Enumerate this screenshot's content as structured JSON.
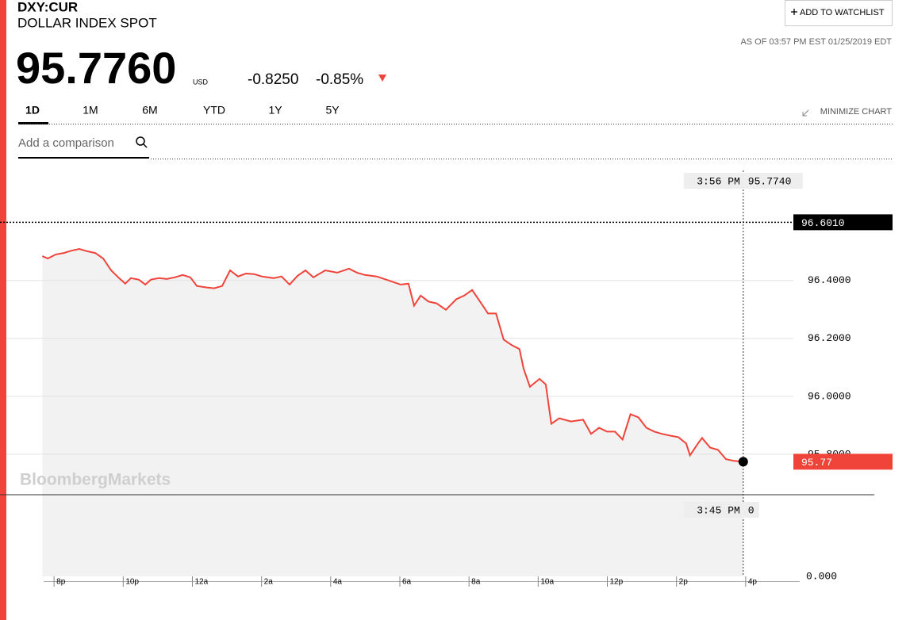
{
  "header": {
    "ticker": "DXY:CUR",
    "name": "DOLLAR INDEX SPOT",
    "price": "95.7760",
    "currency": "USD",
    "change": "-0.8250",
    "change_pct": "-0.85%",
    "as_of": "AS OF 03:57 PM EST 01/25/2019 EDT",
    "watchlist_button": "ADD TO WATCHLIST"
  },
  "tabs": [
    "1D",
    "1M",
    "6M",
    "YTD",
    "1Y",
    "5Y"
  ],
  "minimize": "MINIMIZE CHART",
  "comparison_placeholder": "Add a comparison",
  "chart_data": {
    "type": "line",
    "watermark": "BloombergMarkets",
    "color": "#f0433a",
    "x": [
      19.66,
      19.82,
      20.05,
      20.28,
      20.5,
      20.73,
      20.96,
      21.19,
      21.42,
      21.65,
      21.88,
      22.06,
      22.22,
      22.45,
      22.64,
      22.8,
      23.03,
      23.26,
      23.49,
      23.72,
      23.94,
      24.13,
      24.4,
      24.63,
      24.86,
      25.09,
      25.32,
      25.55,
      25.78,
      26.01,
      26.35,
      26.58,
      26.81,
      27.04,
      27.27,
      27.5,
      27.84,
      28.19,
      28.53,
      28.76,
      28.99,
      29.33,
      29.68,
      30.02,
      30.25,
      30.41,
      30.6,
      30.83,
      31.06,
      31.33,
      31.63,
      31.86,
      32.09,
      32.32,
      32.55,
      32.78,
      33.0,
      33.23,
      33.46,
      33.58,
      33.76,
      34.04,
      34.22,
      34.38,
      34.61,
      34.95,
      35.3,
      35.53,
      35.76,
      35.99,
      36.22,
      36.44,
      36.67,
      36.9,
      37.13,
      37.36,
      37.59,
      37.82,
      38.05,
      38.28,
      38.39,
      38.62,
      38.74,
      38.97,
      39.2,
      39.43,
      39.66,
      39.93
    ],
    "values": [
      96.484,
      96.476,
      96.49,
      96.495,
      96.503,
      96.509,
      96.501,
      96.495,
      96.476,
      96.435,
      96.408,
      96.389,
      96.408,
      96.403,
      96.386,
      96.403,
      96.408,
      96.405,
      96.411,
      96.419,
      96.411,
      96.381,
      96.376,
      96.373,
      96.381,
      96.435,
      96.414,
      96.424,
      96.422,
      96.414,
      96.408,
      96.414,
      96.386,
      96.416,
      96.435,
      96.411,
      96.435,
      96.427,
      96.441,
      96.427,
      96.419,
      96.414,
      96.4,
      96.386,
      96.389,
      96.313,
      96.348,
      96.327,
      96.321,
      96.299,
      96.335,
      96.348,
      96.367,
      96.327,
      96.286,
      96.286,
      96.196,
      96.177,
      96.163,
      96.095,
      96.033,
      96.06,
      96.041,
      95.905,
      95.924,
      95.913,
      95.919,
      95.87,
      95.891,
      95.878,
      95.878,
      95.851,
      95.938,
      95.927,
      95.891,
      95.878,
      95.87,
      95.864,
      95.859,
      95.837,
      95.796,
      95.837,
      95.856,
      95.823,
      95.815,
      95.783,
      95.777,
      95.774
    ],
    "xlim": [
      18.62,
      41.38
    ],
    "xticks": [
      {
        "value": 20,
        "label": "8p"
      },
      {
        "value": 22,
        "label": "10p"
      },
      {
        "value": 24,
        "label": "12a"
      },
      {
        "value": 26,
        "label": "2a"
      },
      {
        "value": 28,
        "label": "4a"
      },
      {
        "value": 30,
        "label": "6a"
      },
      {
        "value": 32,
        "label": "8a"
      },
      {
        "value": 34,
        "label": "10a"
      },
      {
        "value": 36,
        "label": "12p"
      },
      {
        "value": 38,
        "label": "2p"
      },
      {
        "value": 40,
        "label": "4p"
      }
    ],
    "ylim": [
      95.66,
      96.78
    ],
    "yticks": [
      {
        "value": 95.8,
        "label": "95.8000"
      },
      {
        "value": 96,
        "label": "96.0000"
      },
      {
        "value": 96.2,
        "label": "96.2000"
      },
      {
        "value": 96.4,
        "label": "96.4000"
      }
    ],
    "grid": true,
    "high": {
      "value": 96.601,
      "label": "96.6010"
    },
    "last_label": "95.77",
    "crosshair_time": "3:56 PM",
    "crosshair_price": "95.7740",
    "lower_time": "3:45 PM",
    "lower_value": "0",
    "lower_axis_label": "0.000"
  }
}
